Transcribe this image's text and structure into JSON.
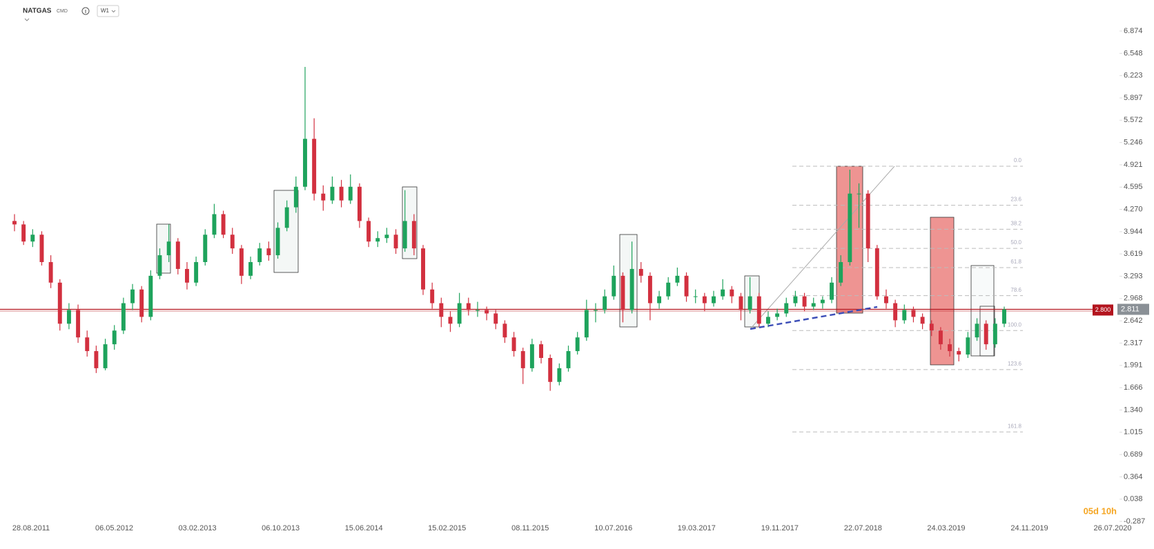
{
  "header": {
    "symbol": "NATGAS",
    "market": "CMD",
    "interval": "W1",
    "countdown": "05d 10h"
  },
  "chart_data": {
    "type": "candlestick",
    "ohlc": [
      [
        4.1,
        4.2,
        3.95,
        4.05
      ],
      [
        4.05,
        4.1,
        3.75,
        3.8
      ],
      [
        3.8,
        3.98,
        3.72,
        3.9
      ],
      [
        3.9,
        3.95,
        3.45,
        3.5
      ],
      [
        3.5,
        3.6,
        3.12,
        3.2
      ],
      [
        3.2,
        3.25,
        2.5,
        2.6
      ],
      [
        2.6,
        2.9,
        2.52,
        2.8
      ],
      [
        2.8,
        2.88,
        2.32,
        2.4
      ],
      [
        2.4,
        2.5,
        2.12,
        2.2
      ],
      [
        2.2,
        2.28,
        1.88,
        1.95
      ],
      [
        1.95,
        2.38,
        1.92,
        2.3
      ],
      [
        2.3,
        2.58,
        2.22,
        2.5
      ],
      [
        2.5,
        2.98,
        2.45,
        2.9
      ],
      [
        2.9,
        3.18,
        2.8,
        3.1
      ],
      [
        3.1,
        3.15,
        2.62,
        2.7
      ],
      [
        2.7,
        3.38,
        2.65,
        3.3
      ],
      [
        3.3,
        3.7,
        3.25,
        3.6
      ],
      [
        3.6,
        4.05,
        3.5,
        3.8
      ],
      [
        3.8,
        3.85,
        3.32,
        3.4
      ],
      [
        3.4,
        3.5,
        3.1,
        3.2
      ],
      [
        3.2,
        3.58,
        3.15,
        3.5
      ],
      [
        3.5,
        3.98,
        3.45,
        3.9
      ],
      [
        3.9,
        4.35,
        3.85,
        4.2
      ],
      [
        4.2,
        4.25,
        3.85,
        3.9
      ],
      [
        3.9,
        4.0,
        3.62,
        3.7
      ],
      [
        3.7,
        3.75,
        3.18,
        3.3
      ],
      [
        3.3,
        3.58,
        3.25,
        3.5
      ],
      [
        3.5,
        3.78,
        3.45,
        3.7
      ],
      [
        3.7,
        3.8,
        3.52,
        3.6
      ],
      [
        3.6,
        4.08,
        3.55,
        4.0
      ],
      [
        4.0,
        4.4,
        3.95,
        4.3
      ],
      [
        4.3,
        4.75,
        4.22,
        4.6
      ],
      [
        4.6,
        6.35,
        4.55,
        5.3
      ],
      [
        5.3,
        5.6,
        4.4,
        4.5
      ],
      [
        4.5,
        4.62,
        4.25,
        4.4
      ],
      [
        4.4,
        4.75,
        4.35,
        4.6
      ],
      [
        4.6,
        4.7,
        4.3,
        4.4
      ],
      [
        4.4,
        4.78,
        4.35,
        4.6
      ],
      [
        4.6,
        4.65,
        4.0,
        4.1
      ],
      [
        4.1,
        4.15,
        3.72,
        3.8
      ],
      [
        3.8,
        3.95,
        3.72,
        3.85
      ],
      [
        3.85,
        4.0,
        3.78,
        3.9
      ],
      [
        3.9,
        3.98,
        3.62,
        3.7
      ],
      [
        3.7,
        4.55,
        3.65,
        4.1
      ],
      [
        4.1,
        4.2,
        3.6,
        3.7
      ],
      [
        3.7,
        3.75,
        3.02,
        3.1
      ],
      [
        3.1,
        3.2,
        2.82,
        2.9
      ],
      [
        2.9,
        2.98,
        2.55,
        2.7
      ],
      [
        2.7,
        2.78,
        2.48,
        2.6
      ],
      [
        2.6,
        3.05,
        2.55,
        2.9
      ],
      [
        2.9,
        2.98,
        2.72,
        2.8
      ],
      [
        2.8,
        2.92,
        2.7,
        2.8
      ],
      [
        2.8,
        2.85,
        2.65,
        2.75
      ],
      [
        2.75,
        2.8,
        2.52,
        2.6
      ],
      [
        2.6,
        2.65,
        2.32,
        2.4
      ],
      [
        2.4,
        2.48,
        2.12,
        2.2
      ],
      [
        2.2,
        2.25,
        1.72,
        1.95
      ],
      [
        1.95,
        2.38,
        1.9,
        2.3
      ],
      [
        2.3,
        2.35,
        2.02,
        2.1
      ],
      [
        2.1,
        2.15,
        1.62,
        1.75
      ],
      [
        1.75,
        2.02,
        1.7,
        1.95
      ],
      [
        1.95,
        2.28,
        1.9,
        2.2
      ],
      [
        2.2,
        2.48,
        2.15,
        2.4
      ],
      [
        2.4,
        2.95,
        2.35,
        2.8
      ],
      [
        2.8,
        2.9,
        2.62,
        2.8
      ],
      [
        2.8,
        3.1,
        2.75,
        3.0
      ],
      [
        3.0,
        3.45,
        2.95,
        3.3
      ],
      [
        3.3,
        3.35,
        2.62,
        2.8
      ],
      [
        2.8,
        3.8,
        2.75,
        3.4
      ],
      [
        3.4,
        3.5,
        3.2,
        3.3
      ],
      [
        3.3,
        3.35,
        2.65,
        2.9
      ],
      [
        2.9,
        3.08,
        2.82,
        3.0
      ],
      [
        3.0,
        3.28,
        2.95,
        3.2
      ],
      [
        3.2,
        3.42,
        3.15,
        3.3
      ],
      [
        3.3,
        3.35,
        2.92,
        3.0
      ],
      [
        3.0,
        3.1,
        2.9,
        3.0
      ],
      [
        3.0,
        3.05,
        2.78,
        2.9
      ],
      [
        2.9,
        3.08,
        2.85,
        3.0
      ],
      [
        3.0,
        3.25,
        2.95,
        3.1
      ],
      [
        3.1,
        3.15,
        2.9,
        3.0
      ],
      [
        3.0,
        3.05,
        2.65,
        2.8
      ],
      [
        2.8,
        3.28,
        2.75,
        3.0
      ],
      [
        3.0,
        3.05,
        2.55,
        2.6
      ],
      [
        2.6,
        2.78,
        2.55,
        2.7
      ],
      [
        2.7,
        2.82,
        2.65,
        2.75
      ],
      [
        2.75,
        2.98,
        2.7,
        2.9
      ],
      [
        2.9,
        3.08,
        2.85,
        3.0
      ],
      [
        3.0,
        3.05,
        2.78,
        2.85
      ],
      [
        2.85,
        2.98,
        2.8,
        2.9
      ],
      [
        2.9,
        3.0,
        2.82,
        2.95
      ],
      [
        2.95,
        3.28,
        2.9,
        3.2
      ],
      [
        3.2,
        3.6,
        3.15,
        3.5
      ],
      [
        3.5,
        4.85,
        3.45,
        4.5
      ],
      [
        4.5,
        4.65,
        4.0,
        4.5
      ],
      [
        4.5,
        4.55,
        3.5,
        3.7
      ],
      [
        3.7,
        3.75,
        2.95,
        3.0
      ],
      [
        3.0,
        3.1,
        2.82,
        2.9
      ],
      [
        2.9,
        2.95,
        2.55,
        2.65
      ],
      [
        2.65,
        2.88,
        2.6,
        2.8
      ],
      [
        2.8,
        2.85,
        2.62,
        2.7
      ],
      [
        2.7,
        2.75,
        2.52,
        2.6
      ],
      [
        2.6,
        2.65,
        2.42,
        2.5
      ],
      [
        2.5,
        2.55,
        2.22,
        2.3
      ],
      [
        2.3,
        2.38,
        2.12,
        2.2
      ],
      [
        2.2,
        2.25,
        2.05,
        2.15
      ],
      [
        2.15,
        2.48,
        2.1,
        2.4
      ],
      [
        2.4,
        2.68,
        2.35,
        2.6
      ],
      [
        2.6,
        2.65,
        2.22,
        2.3
      ],
      [
        2.3,
        2.68,
        2.25,
        2.6
      ],
      [
        2.6,
        2.85,
        2.55,
        2.81
      ]
    ],
    "up_color": "#1ea35c",
    "down_color": "#d2303f",
    "ylim": [
      -0.287,
      6.874
    ],
    "yticks": [
      6.874,
      6.548,
      6.223,
      5.897,
      5.572,
      5.246,
      4.921,
      4.595,
      {
        "value": 4.27,
        "label": "4.270"
      },
      3.944,
      3.619,
      3.293,
      2.968,
      2.642,
      2.317,
      1.991,
      1.666,
      {
        "value": 1.34,
        "label": "1.340"
      },
      1.015,
      0.689,
      0.364,
      0.038,
      -0.287
    ],
    "xticks": [
      "28.08.2011",
      "06.05.2012",
      "03.02.2013",
      "06.10.2013",
      "15.06.2014",
      "15.02.2015",
      "08.11.2015",
      "10.07.2016",
      "19.03.2017",
      "19.11.2017",
      "22.07.2018",
      "24.03.2019",
      "24.11.2019",
      "26.07.2020"
    ],
    "hline": {
      "value": 2.8,
      "label": "2.800",
      "color": "#b3141e"
    },
    "last_price": 2.811,
    "fibonacci": [
      {
        "ratio": "0.0",
        "price": 4.9
      },
      {
        "ratio": "23.6",
        "price": 4.33
      },
      {
        "ratio": "38.2",
        "price": 3.98
      },
      {
        "ratio": "50.0",
        "price": 3.7
      },
      {
        "ratio": "61.8",
        "price": 3.42
      },
      {
        "ratio": "78.6",
        "price": 3.01
      },
      {
        "ratio": "100.0",
        "price": 2.5
      },
      {
        "ratio": "123.6",
        "price": 1.93
      },
      {
        "ratio": "161.8",
        "price": 1.02
      }
    ]
  }
}
